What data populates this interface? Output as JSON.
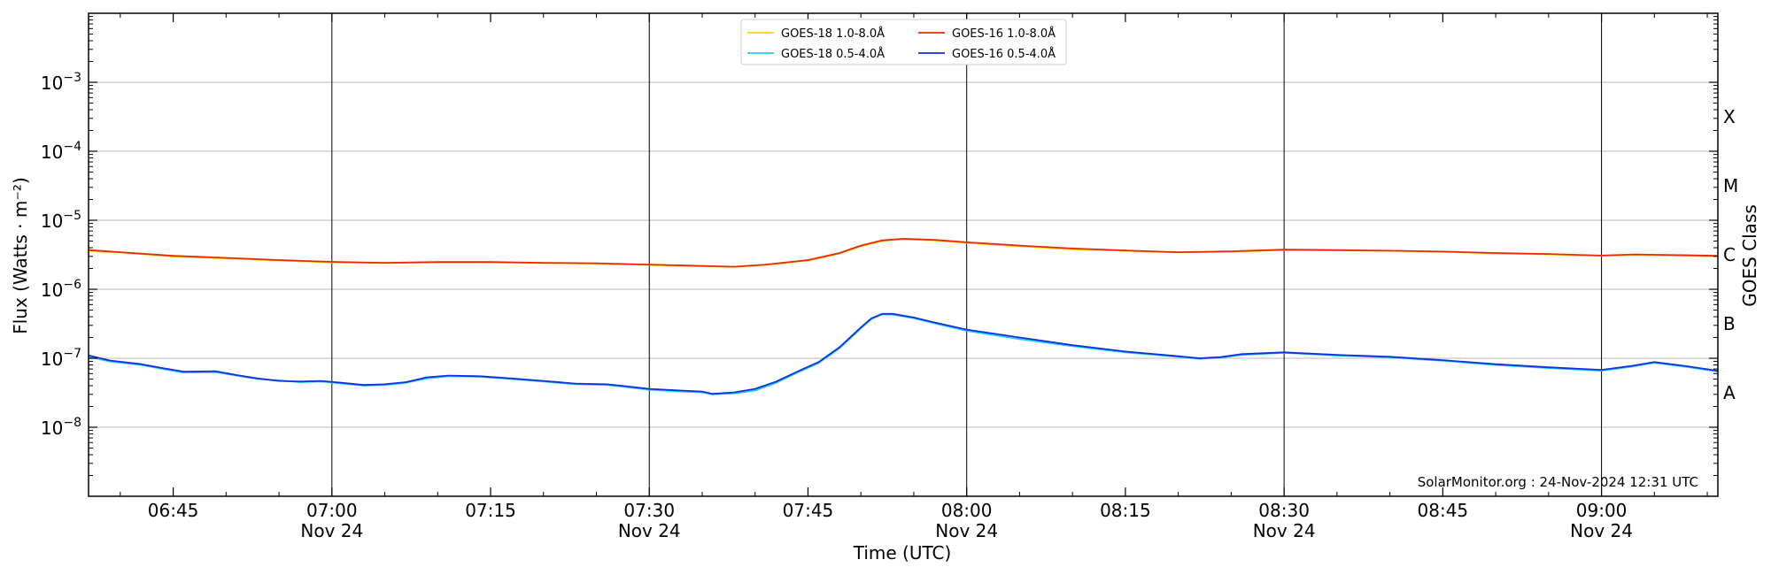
{
  "chart_data": {
    "type": "line",
    "xlabel": "Time (UTC)",
    "ylabel": "Flux (Watts · m⁻²)",
    "right_label": "GOES Class",
    "yscale": "log",
    "ylim": [
      1e-09,
      0.01
    ],
    "xlim": [
      "06:37",
      "09:11"
    ],
    "grid": "horizontal",
    "legend_position": "top-center",
    "credit": "SolarMonitor.org : 24-Nov-2024 12:31 UTC",
    "y_ticks": [
      {
        "value": 1e-08,
        "base": "10",
        "exp": "−8"
      },
      {
        "value": 1e-07,
        "base": "10",
        "exp": "−7"
      },
      {
        "value": 1e-06,
        "base": "10",
        "exp": "−6"
      },
      {
        "value": 1e-05,
        "base": "10",
        "exp": "−5"
      },
      {
        "value": 0.0001,
        "base": "10",
        "exp": "−4"
      },
      {
        "value": 0.001,
        "base": "10",
        "exp": "−3"
      }
    ],
    "x_ticks": [
      {
        "time": "06:45",
        "line1": "06:45",
        "line2": ""
      },
      {
        "time": "07:00",
        "line1": "07:00",
        "line2": "Nov 24"
      },
      {
        "time": "07:15",
        "line1": "07:15",
        "line2": ""
      },
      {
        "time": "07:30",
        "line1": "07:30",
        "line2": "Nov 24"
      },
      {
        "time": "07:45",
        "line1": "07:45",
        "line2": ""
      },
      {
        "time": "08:00",
        "line1": "08:00",
        "line2": "Nov 24"
      },
      {
        "time": "08:15",
        "line1": "08:15",
        "line2": ""
      },
      {
        "time": "08:30",
        "line1": "08:30",
        "line2": "Nov 24"
      },
      {
        "time": "08:45",
        "line1": "08:45",
        "line2": ""
      },
      {
        "time": "09:00",
        "line1": "09:00",
        "line2": "Nov 24"
      }
    ],
    "vertical_lines": [
      "07:00",
      "07:30",
      "08:00",
      "08:30",
      "09:00"
    ],
    "goes_classes": [
      {
        "label": "A",
        "value": 3.16e-08
      },
      {
        "label": "B",
        "value": 3.16e-07
      },
      {
        "label": "C",
        "value": 3.16e-06
      },
      {
        "label": "M",
        "value": 3.16e-05
      },
      {
        "label": "X",
        "value": 0.000316
      }
    ],
    "series": [
      {
        "name": "GOES-18 1.0-8.0Å",
        "color": "#ffd700",
        "points": [
          [
            "06:37",
            3.6e-06
          ],
          [
            "06:40",
            3.4e-06
          ],
          [
            "06:45",
            3e-06
          ],
          [
            "06:50",
            2.8e-06
          ],
          [
            "06:55",
            2.6e-06
          ],
          [
            "07:00",
            2.45e-06
          ],
          [
            "07:05",
            2.4e-06
          ],
          [
            "07:10",
            2.45e-06
          ],
          [
            "07:15",
            2.45e-06
          ],
          [
            "07:20",
            2.4e-06
          ],
          [
            "07:25",
            2.35e-06
          ],
          [
            "07:30",
            2.25e-06
          ],
          [
            "07:35",
            2.15e-06
          ],
          [
            "07:38",
            2.1e-06
          ],
          [
            "07:41",
            2.25e-06
          ],
          [
            "07:45",
            2.6e-06
          ],
          [
            "07:48",
            3.3e-06
          ],
          [
            "07:50",
            4.2e-06
          ],
          [
            "07:52",
            5e-06
          ],
          [
            "07:54",
            5.3e-06
          ],
          [
            "07:57",
            5.1e-06
          ],
          [
            "08:00",
            4.7e-06
          ],
          [
            "08:05",
            4.2e-06
          ],
          [
            "08:10",
            3.8e-06
          ],
          [
            "08:15",
            3.6e-06
          ],
          [
            "08:20",
            3.4e-06
          ],
          [
            "08:25",
            3.5e-06
          ],
          [
            "08:30",
            3.7e-06
          ],
          [
            "08:35",
            3.65e-06
          ],
          [
            "08:40",
            3.6e-06
          ],
          [
            "08:45",
            3.5e-06
          ],
          [
            "08:50",
            3.3e-06
          ],
          [
            "08:55",
            3.2e-06
          ],
          [
            "09:00",
            3.05e-06
          ],
          [
            "09:03",
            3.15e-06
          ],
          [
            "09:06",
            3.1e-06
          ],
          [
            "09:11",
            3e-06
          ]
        ]
      },
      {
        "name": "GOES-16 1.0-8.0Å",
        "color": "#e8280a",
        "points": [
          [
            "06:37",
            3.7e-06
          ],
          [
            "06:40",
            3.45e-06
          ],
          [
            "06:45",
            3.05e-06
          ],
          [
            "06:50",
            2.85e-06
          ],
          [
            "06:55",
            2.65e-06
          ],
          [
            "07:00",
            2.5e-06
          ],
          [
            "07:05",
            2.42e-06
          ],
          [
            "07:10",
            2.48e-06
          ],
          [
            "07:15",
            2.48e-06
          ],
          [
            "07:20",
            2.42e-06
          ],
          [
            "07:25",
            2.38e-06
          ],
          [
            "07:30",
            2.28e-06
          ],
          [
            "07:35",
            2.18e-06
          ],
          [
            "07:38",
            2.12e-06
          ],
          [
            "07:41",
            2.28e-06
          ],
          [
            "07:45",
            2.65e-06
          ],
          [
            "07:48",
            3.35e-06
          ],
          [
            "07:50",
            4.3e-06
          ],
          [
            "07:52",
            5.1e-06
          ],
          [
            "07:54",
            5.4e-06
          ],
          [
            "07:57",
            5.2e-06
          ],
          [
            "08:00",
            4.8e-06
          ],
          [
            "08:05",
            4.3e-06
          ],
          [
            "08:10",
            3.9e-06
          ],
          [
            "08:15",
            3.65e-06
          ],
          [
            "08:20",
            3.45e-06
          ],
          [
            "08:25",
            3.55e-06
          ],
          [
            "08:30",
            3.75e-06
          ],
          [
            "08:35",
            3.7e-06
          ],
          [
            "08:40",
            3.62e-06
          ],
          [
            "08:45",
            3.52e-06
          ],
          [
            "08:50",
            3.35e-06
          ],
          [
            "08:55",
            3.25e-06
          ],
          [
            "09:00",
            3.08e-06
          ],
          [
            "09:03",
            3.2e-06
          ],
          [
            "09:06",
            3.15e-06
          ],
          [
            "09:11",
            3.05e-06
          ]
        ]
      },
      {
        "name": "GOES-18 0.5-4.0Å",
        "color": "#22ccee",
        "points": [
          [
            "06:37",
            1.05e-07
          ],
          [
            "06:39",
            9e-08
          ],
          [
            "06:42",
            8e-08
          ],
          [
            "06:44",
            7e-08
          ],
          [
            "06:46",
            6.2e-08
          ],
          [
            "06:49",
            6.3e-08
          ],
          [
            "06:51",
            5.6e-08
          ],
          [
            "06:53",
            5e-08
          ],
          [
            "06:55",
            4.8e-08
          ],
          [
            "06:57",
            4.5e-08
          ],
          [
            "06:59",
            4.6e-08
          ],
          [
            "07:01",
            4.3e-08
          ],
          [
            "07:03",
            4e-08
          ],
          [
            "07:05",
            4.1e-08
          ],
          [
            "07:07",
            4.4e-08
          ],
          [
            "07:09",
            5.1e-08
          ],
          [
            "07:11",
            5.5e-08
          ],
          [
            "07:14",
            5.4e-08
          ],
          [
            "07:17",
            5e-08
          ],
          [
            "07:20",
            4.6e-08
          ],
          [
            "07:23",
            4.2e-08
          ],
          [
            "07:26",
            4.1e-08
          ],
          [
            "07:28",
            3.8e-08
          ],
          [
            "07:30",
            3.5e-08
          ],
          [
            "07:33",
            3.3e-08
          ],
          [
            "07:35",
            3.2e-08
          ],
          [
            "07:36",
            3e-08
          ],
          [
            "07:38",
            3.1e-08
          ],
          [
            "07:40",
            3.4e-08
          ],
          [
            "07:42",
            4.4e-08
          ],
          [
            "07:44",
            6.2e-08
          ],
          [
            "07:46",
            8.5e-08
          ],
          [
            "07:48",
            1.4e-07
          ],
          [
            "07:50",
            2.7e-07
          ],
          [
            "07:51",
            3.7e-07
          ],
          [
            "07:52",
            4.3e-07
          ],
          [
            "07:53",
            4.3e-07
          ],
          [
            "07:55",
            3.8e-07
          ],
          [
            "07:57",
            3.2e-07
          ],
          [
            "08:00",
            2.5e-07
          ],
          [
            "08:05",
            1.9e-07
          ],
          [
            "08:10",
            1.5e-07
          ],
          [
            "08:15",
            1.22e-07
          ],
          [
            "08:20",
            1.05e-07
          ],
          [
            "08:22",
            9.8e-08
          ],
          [
            "08:24",
            1.02e-07
          ],
          [
            "08:26",
            1.12e-07
          ],
          [
            "08:30",
            1.2e-07
          ],
          [
            "08:35",
            1.1e-07
          ],
          [
            "08:40",
            1.03e-07
          ],
          [
            "08:45",
            9.2e-08
          ],
          [
            "08:50",
            8e-08
          ],
          [
            "08:55",
            7.2e-08
          ],
          [
            "09:00",
            6.6e-08
          ],
          [
            "09:03",
            7.6e-08
          ],
          [
            "09:05",
            8.6e-08
          ],
          [
            "09:08",
            7.5e-08
          ],
          [
            "09:11",
            6.4e-08
          ]
        ]
      },
      {
        "name": "GOES-16 0.5-4.0Å",
        "color": "#1030e0",
        "points": [
          [
            "06:37",
            1.1e-07
          ],
          [
            "06:39",
            9.3e-08
          ],
          [
            "06:42",
            8.2e-08
          ],
          [
            "06:44",
            7.2e-08
          ],
          [
            "06:46",
            6.4e-08
          ],
          [
            "06:49",
            6.5e-08
          ],
          [
            "06:51",
            5.7e-08
          ],
          [
            "06:53",
            5.1e-08
          ],
          [
            "06:55",
            4.7e-08
          ],
          [
            "06:57",
            4.6e-08
          ],
          [
            "06:59",
            4.7e-08
          ],
          [
            "07:01",
            4.4e-08
          ],
          [
            "07:03",
            4.1e-08
          ],
          [
            "07:05",
            4.2e-08
          ],
          [
            "07:07",
            4.5e-08
          ],
          [
            "07:09",
            5.3e-08
          ],
          [
            "07:11",
            5.6e-08
          ],
          [
            "07:14",
            5.5e-08
          ],
          [
            "07:17",
            5.1e-08
          ],
          [
            "07:20",
            4.7e-08
          ],
          [
            "07:23",
            4.3e-08
          ],
          [
            "07:26",
            4.2e-08
          ],
          [
            "07:28",
            3.9e-08
          ],
          [
            "07:30",
            3.6e-08
          ],
          [
            "07:33",
            3.4e-08
          ],
          [
            "07:35",
            3.3e-08
          ],
          [
            "07:36",
            3.05e-08
          ],
          [
            "07:38",
            3.2e-08
          ],
          [
            "07:40",
            3.6e-08
          ],
          [
            "07:42",
            4.6e-08
          ],
          [
            "07:44",
            6.4e-08
          ],
          [
            "07:46",
            8.8e-08
          ],
          [
            "07:48",
            1.45e-07
          ],
          [
            "07:50",
            2.8e-07
          ],
          [
            "07:51",
            3.8e-07
          ],
          [
            "07:52",
            4.4e-07
          ],
          [
            "07:53",
            4.4e-07
          ],
          [
            "07:55",
            3.9e-07
          ],
          [
            "07:57",
            3.3e-07
          ],
          [
            "08:00",
            2.6e-07
          ],
          [
            "08:05",
            2e-07
          ],
          [
            "08:10",
            1.55e-07
          ],
          [
            "08:15",
            1.25e-07
          ],
          [
            "08:20",
            1.07e-07
          ],
          [
            "08:22",
            1e-07
          ],
          [
            "08:24",
            1.04e-07
          ],
          [
            "08:26",
            1.15e-07
          ],
          [
            "08:30",
            1.22e-07
          ],
          [
            "08:35",
            1.12e-07
          ],
          [
            "08:40",
            1.05e-07
          ],
          [
            "08:45",
            9.4e-08
          ],
          [
            "08:50",
            8.2e-08
          ],
          [
            "08:55",
            7.4e-08
          ],
          [
            "09:00",
            6.8e-08
          ],
          [
            "09:03",
            7.8e-08
          ],
          [
            "09:05",
            8.8e-08
          ],
          [
            "09:08",
            7.7e-08
          ],
          [
            "09:11",
            6.6e-08
          ]
        ]
      }
    ]
  }
}
